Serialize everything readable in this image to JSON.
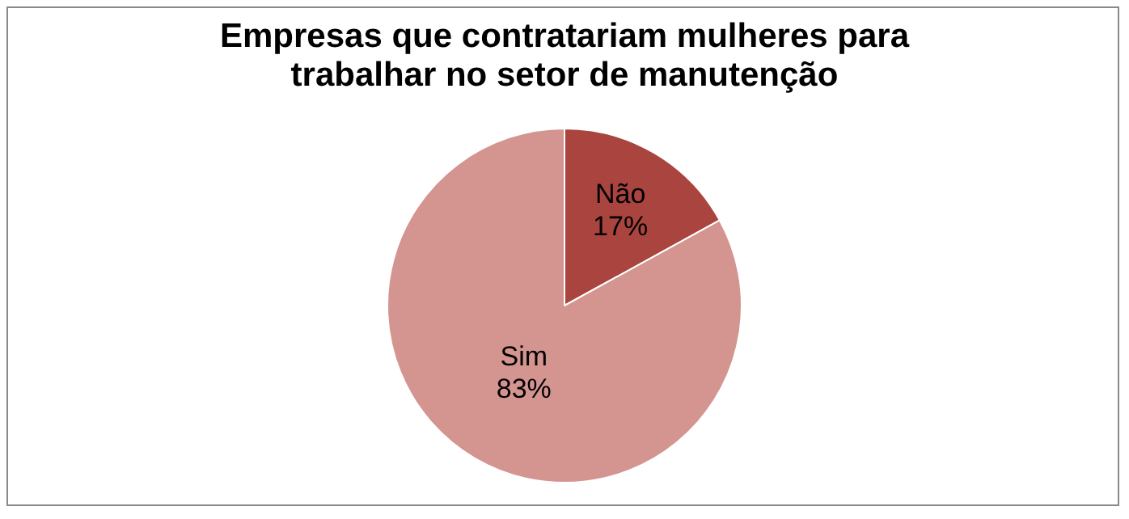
{
  "chart_data": {
    "type": "pie",
    "title": "Empresas que contratariam mulheres para trabalhar no setor de manutenção",
    "categories": [
      "Não",
      "Sim"
    ],
    "values": [
      17,
      83
    ],
    "colors": [
      "#a9443f",
      "#d49490"
    ],
    "value_labels": [
      "17%",
      "83%"
    ],
    "legend": false
  }
}
